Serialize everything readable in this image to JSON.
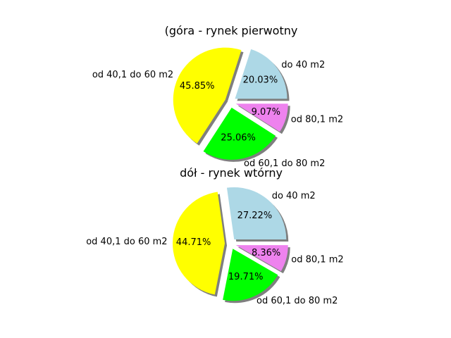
{
  "chart_data": [
    {
      "type": "pie",
      "title": "(góra - rynek pierwotny",
      "categories": [
        "do 40 m2",
        "od 40,1 do 60 m2",
        "od 60,1 do 80 m2",
        "od 80,1 m2"
      ],
      "values": [
        20.03,
        45.85,
        25.06,
        9.07
      ],
      "value_labels": [
        "20.03%",
        "45.85%",
        "25.06%",
        "9.07%"
      ],
      "colors": [
        "#add8e6",
        "#ffff00",
        "#00ff00",
        "#ee82ee"
      ],
      "exploded": true,
      "shadow": true,
      "legend": "none"
    },
    {
      "type": "pie",
      "title": "dół - rynek wtórny",
      "categories": [
        "do 40 m2",
        "od 40,1 do 60 m2",
        "od 60,1 do 80 m2",
        "od 80,1 m2"
      ],
      "values": [
        27.22,
        44.71,
        19.71,
        8.36
      ],
      "value_labels": [
        "27.22%",
        "44.71%",
        "19.71%",
        "8.36%"
      ],
      "colors": [
        "#add8e6",
        "#ffff00",
        "#00ff00",
        "#ee82ee"
      ],
      "exploded": true,
      "shadow": true,
      "legend": "none"
    }
  ]
}
